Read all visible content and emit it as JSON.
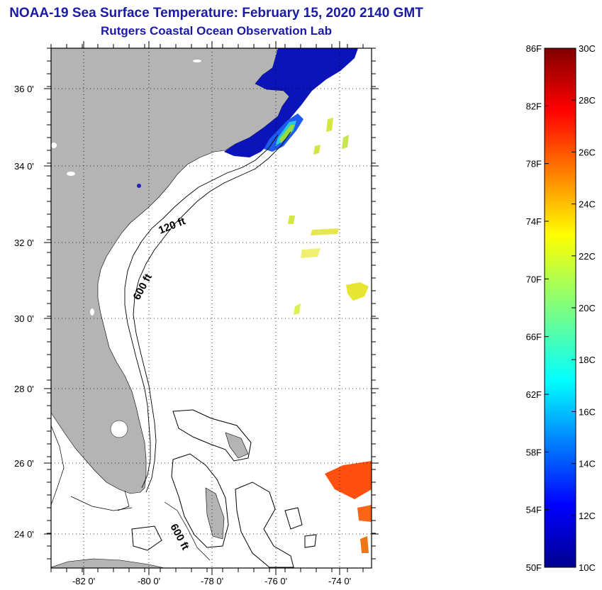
{
  "title": "NOAA-19 Sea Surface Temperature:  February 15, 2020 2140 GMT",
  "subtitle": "Rutgers Coastal Ocean Observation Lab",
  "map": {
    "lat_labels": [
      "36 0'",
      "34 0'",
      "32 0'",
      "30 0'",
      "28 0'",
      "26 0'",
      "24 0'"
    ],
    "lon_labels": [
      "-82 0'",
      "-80 0'",
      "-78 0'",
      "-76 0'",
      "-74 0'"
    ],
    "isobath_labels": {
      "shelf_120": "120 ft",
      "shelf_600": "600 ft",
      "bahamas_600": "600 ft"
    },
    "land_color": "#b4b4b4"
  },
  "colorbar": {
    "f_labels": [
      "86F",
      "82F",
      "78F",
      "74F",
      "70F",
      "66F",
      "62F",
      "58F",
      "54F",
      "50F"
    ],
    "c_labels": [
      "30C",
      "28C",
      "26C",
      "24C",
      "22C",
      "20C",
      "18C",
      "16C",
      "14C",
      "12C",
      "10C"
    ],
    "min_c": 10,
    "max_c": 30
  }
}
